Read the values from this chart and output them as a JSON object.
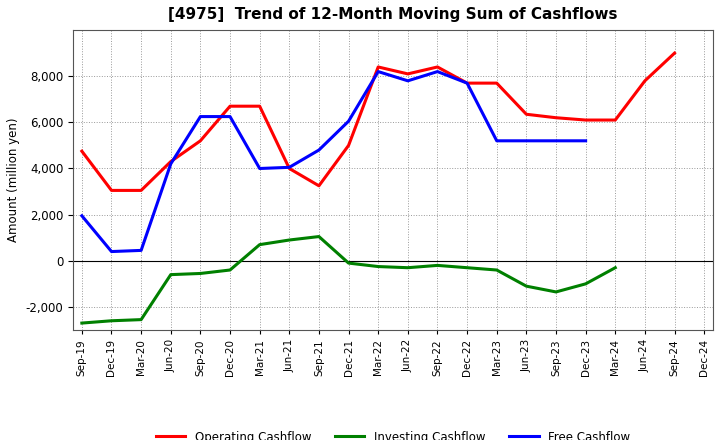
{
  "title": "[4975]  Trend of 12-Month Moving Sum of Cashflows",
  "ylabel": "Amount (million yen)",
  "x_labels": [
    "Sep-19",
    "Dec-19",
    "Mar-20",
    "Jun-20",
    "Sep-20",
    "Dec-20",
    "Mar-21",
    "Jun-21",
    "Sep-21",
    "Dec-21",
    "Mar-22",
    "Jun-22",
    "Sep-22",
    "Dec-22",
    "Mar-23",
    "Jun-23",
    "Sep-23",
    "Dec-23",
    "Mar-24",
    "Jun-24",
    "Sep-24",
    "Dec-24"
  ],
  "operating_x": [
    0,
    1,
    2,
    3,
    4,
    5,
    6,
    7,
    8,
    9,
    10,
    11,
    12,
    13,
    14,
    15,
    16,
    17,
    18,
    19,
    20
  ],
  "operating_y": [
    4750,
    3050,
    3050,
    4300,
    5200,
    6700,
    6700,
    4000,
    3250,
    5000,
    8400,
    8100,
    8400,
    7700,
    7700,
    6350,
    6200,
    6100,
    6100,
    7800,
    9000
  ],
  "investing_x": [
    0,
    1,
    2,
    3,
    4,
    5,
    6,
    7,
    8,
    9,
    10,
    11,
    12,
    13,
    14,
    15,
    16,
    17,
    18
  ],
  "investing_y": [
    -2700,
    -2600,
    -2550,
    -600,
    -550,
    -400,
    700,
    900,
    1050,
    -100,
    -250,
    -300,
    -200,
    -300,
    -400,
    -1100,
    -1350,
    -1000,
    -300
  ],
  "free_x": [
    0,
    1,
    2,
    3,
    4,
    5,
    6,
    7,
    8,
    9,
    10,
    11,
    12,
    13,
    14,
    15,
    16,
    17
  ],
  "free_y": [
    1950,
    400,
    450,
    4200,
    6250,
    6250,
    4000,
    4050,
    4800,
    6050,
    8200,
    7800,
    8200,
    7700,
    5200,
    5200,
    5200,
    5200
  ],
  "operating_color": "#ff0000",
  "investing_color": "#008000",
  "free_color": "#0000ff",
  "ylim": [
    -3000,
    10000
  ],
  "yticks": [
    -2000,
    0,
    2000,
    4000,
    6000,
    8000
  ],
  "background_color": "#ffffff",
  "grid_color": "#999999"
}
